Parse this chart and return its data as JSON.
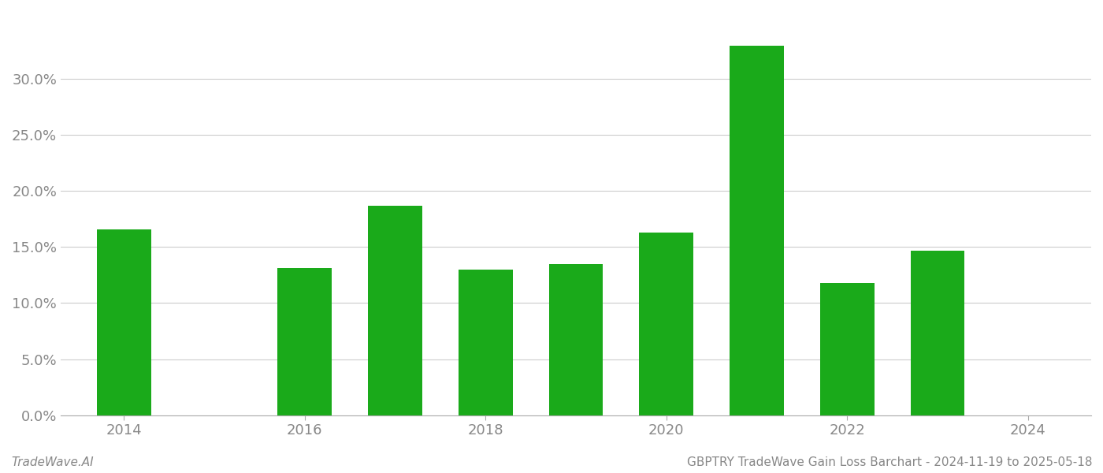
{
  "bar_years": [
    2014,
    2016,
    2017,
    2018,
    2019,
    2020,
    2021,
    2022,
    2023
  ],
  "values": [
    0.166,
    0.131,
    0.187,
    0.13,
    0.135,
    0.163,
    0.33,
    0.118,
    0.147
  ],
  "bar_color": "#1aaa1a",
  "background_color": "#ffffff",
  "ylabel_ticks": [
    0.0,
    0.05,
    0.1,
    0.15,
    0.2,
    0.25,
    0.3
  ],
  "ylim": [
    0,
    0.36
  ],
  "xlim": [
    2013.3,
    2024.7
  ],
  "xticks": [
    2014,
    2016,
    2018,
    2020,
    2022,
    2024
  ],
  "grid_color": "#cccccc",
  "tick_color": "#888888",
  "footer_left": "TradeWave.AI",
  "footer_right": "GBPTRY TradeWave Gain Loss Barchart - 2024-11-19 to 2025-05-18",
  "footer_fontsize": 11,
  "axis_fontsize": 13,
  "bar_width": 0.6
}
